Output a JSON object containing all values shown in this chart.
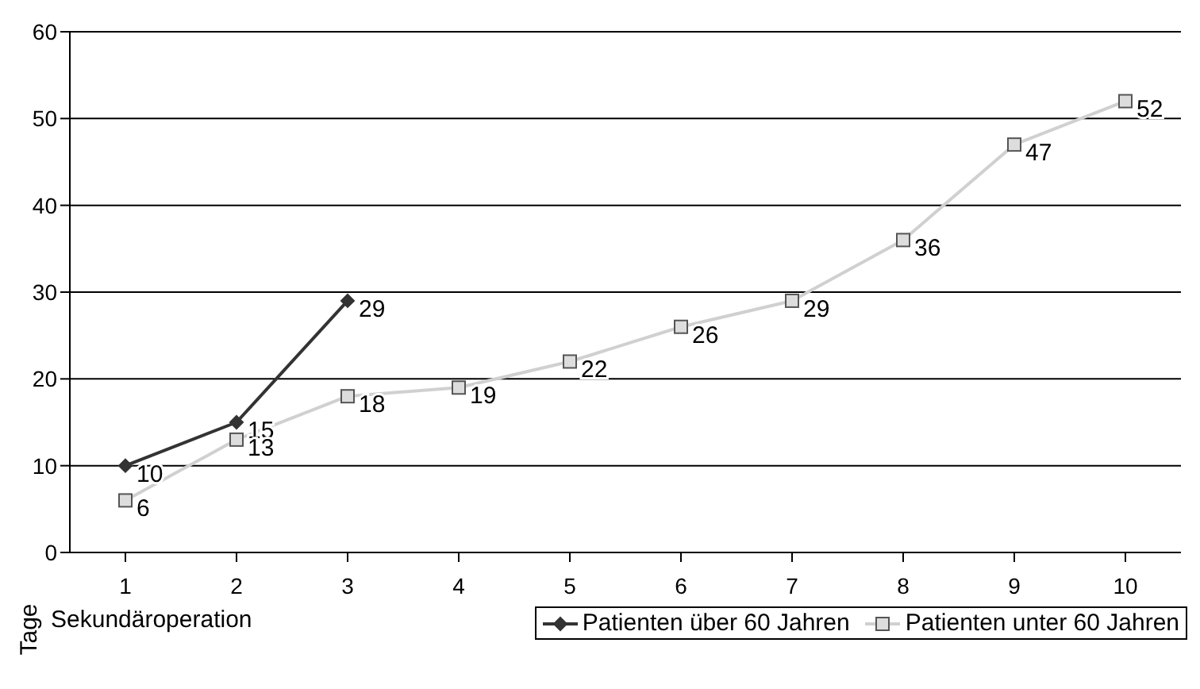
{
  "chart_data": {
    "type": "line",
    "xlabel": "Sekundäroperation",
    "ylabel": "Tage",
    "categories": [
      "1",
      "2",
      "3",
      "4",
      "5",
      "6",
      "7",
      "8",
      "9",
      "10"
    ],
    "series": [
      {
        "name": "Patienten über 60 Jahren",
        "color": "#333333",
        "marker": "diamond",
        "values": [
          10,
          15,
          29,
          null,
          null,
          null,
          null,
          null,
          null,
          null
        ]
      },
      {
        "name": "Patienten unter 60 Jahren",
        "color": "#d0d0d0",
        "marker": "square",
        "values": [
          6,
          13,
          18,
          19,
          22,
          26,
          29,
          36,
          47,
          52
        ]
      }
    ],
    "ylim": [
      0,
      60
    ],
    "yticks": [
      0,
      10,
      20,
      30,
      40,
      50,
      60
    ],
    "grid": "y",
    "legend": "bottom right",
    "data_labels": true
  }
}
